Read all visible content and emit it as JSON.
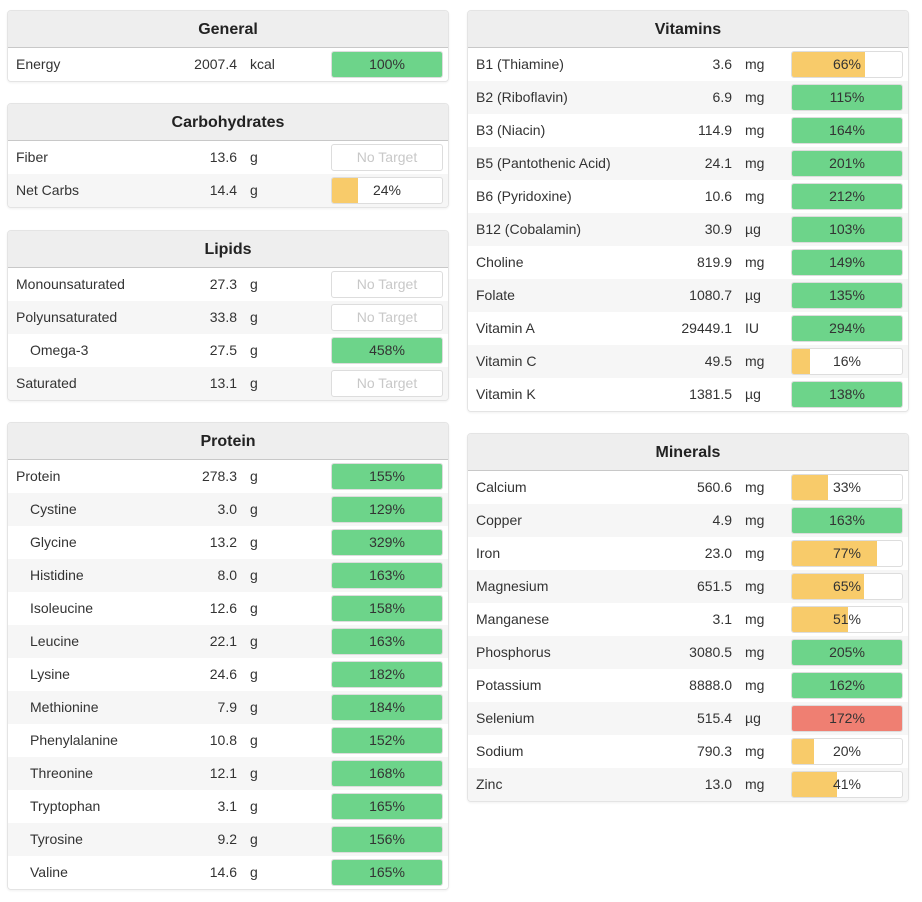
{
  "colors": {
    "good": "#6dd48a",
    "low": "#f8cb6a",
    "high": "#ef7f72"
  },
  "panels": [
    {
      "id": "general",
      "title": "General",
      "col": "left",
      "top": 10,
      "rows": [
        {
          "name": "Energy",
          "value": "2007.4",
          "unit": "kcal",
          "pct": 100,
          "label": "100%",
          "status": "good"
        }
      ]
    },
    {
      "id": "carbohydrates",
      "title": "Carbohydrates",
      "col": "left",
      "top": 103,
      "rows": [
        {
          "name": "Fiber",
          "value": "13.6",
          "unit": "g",
          "pct": null,
          "label": "No Target"
        },
        {
          "name": "Net Carbs",
          "value": "14.4",
          "unit": "g",
          "pct": 24,
          "label": "24%",
          "status": "low"
        }
      ]
    },
    {
      "id": "lipids",
      "title": "Lipids",
      "col": "left",
      "top": 230,
      "rows": [
        {
          "name": "Monounsaturated",
          "value": "27.3",
          "unit": "g",
          "pct": null,
          "label": "No Target"
        },
        {
          "name": "Polyunsaturated",
          "value": "33.8",
          "unit": "g",
          "pct": null,
          "label": "No Target"
        },
        {
          "name": "Omega-3",
          "value": "27.5",
          "unit": "g",
          "pct": 458,
          "label": "458%",
          "status": "good",
          "indent": true
        },
        {
          "name": "Saturated",
          "value": "13.1",
          "unit": "g",
          "pct": null,
          "label": "No Target"
        }
      ]
    },
    {
      "id": "protein",
      "title": "Protein",
      "col": "left",
      "top": 422,
      "rows": [
        {
          "name": "Protein",
          "value": "278.3",
          "unit": "g",
          "pct": 155,
          "label": "155%",
          "status": "good"
        },
        {
          "name": "Cystine",
          "value": "3.0",
          "unit": "g",
          "pct": 129,
          "label": "129%",
          "status": "good",
          "indent": true
        },
        {
          "name": "Glycine",
          "value": "13.2",
          "unit": "g",
          "pct": 329,
          "label": "329%",
          "status": "good",
          "indent": true
        },
        {
          "name": "Histidine",
          "value": "8.0",
          "unit": "g",
          "pct": 163,
          "label": "163%",
          "status": "good",
          "indent": true
        },
        {
          "name": "Isoleucine",
          "value": "12.6",
          "unit": "g",
          "pct": 158,
          "label": "158%",
          "status": "good",
          "indent": true
        },
        {
          "name": "Leucine",
          "value": "22.1",
          "unit": "g",
          "pct": 163,
          "label": "163%",
          "status": "good",
          "indent": true
        },
        {
          "name": "Lysine",
          "value": "24.6",
          "unit": "g",
          "pct": 182,
          "label": "182%",
          "status": "good",
          "indent": true
        },
        {
          "name": "Methionine",
          "value": "7.9",
          "unit": "g",
          "pct": 184,
          "label": "184%",
          "status": "good",
          "indent": true
        },
        {
          "name": "Phenylalanine",
          "value": "10.8",
          "unit": "g",
          "pct": 152,
          "label": "152%",
          "status": "good",
          "indent": true
        },
        {
          "name": "Threonine",
          "value": "12.1",
          "unit": "g",
          "pct": 168,
          "label": "168%",
          "status": "good",
          "indent": true
        },
        {
          "name": "Tryptophan",
          "value": "3.1",
          "unit": "g",
          "pct": 165,
          "label": "165%",
          "status": "good",
          "indent": true
        },
        {
          "name": "Tyrosine",
          "value": "9.2",
          "unit": "g",
          "pct": 156,
          "label": "156%",
          "status": "good",
          "indent": true
        },
        {
          "name": "Valine",
          "value": "14.6",
          "unit": "g",
          "pct": 165,
          "label": "165%",
          "status": "good",
          "indent": true
        }
      ]
    },
    {
      "id": "vitamins",
      "title": "Vitamins",
      "col": "right",
      "top": 10,
      "rows": [
        {
          "name": "B1 (Thiamine)",
          "value": "3.6",
          "unit": "mg",
          "pct": 66,
          "label": "66%",
          "status": "low"
        },
        {
          "name": "B2 (Riboflavin)",
          "value": "6.9",
          "unit": "mg",
          "pct": 115,
          "label": "115%",
          "status": "good"
        },
        {
          "name": "B3 (Niacin)",
          "value": "114.9",
          "unit": "mg",
          "pct": 164,
          "label": "164%",
          "status": "good"
        },
        {
          "name": "B5 (Pantothenic Acid)",
          "value": "24.1",
          "unit": "mg",
          "pct": 201,
          "label": "201%",
          "status": "good"
        },
        {
          "name": "B6 (Pyridoxine)",
          "value": "10.6",
          "unit": "mg",
          "pct": 212,
          "label": "212%",
          "status": "good"
        },
        {
          "name": "B12 (Cobalamin)",
          "value": "30.9",
          "unit": "µg",
          "pct": 103,
          "label": "103%",
          "status": "good"
        },
        {
          "name": "Choline",
          "value": "819.9",
          "unit": "mg",
          "pct": 149,
          "label": "149%",
          "status": "good"
        },
        {
          "name": "Folate",
          "value": "1080.7",
          "unit": "µg",
          "pct": 135,
          "label": "135%",
          "status": "good"
        },
        {
          "name": "Vitamin A",
          "value": "29449.1",
          "unit": "IU",
          "pct": 294,
          "label": "294%",
          "status": "good"
        },
        {
          "name": "Vitamin C",
          "value": "49.5",
          "unit": "mg",
          "pct": 16,
          "label": "16%",
          "status": "low"
        },
        {
          "name": "Vitamin K",
          "value": "1381.5",
          "unit": "µg",
          "pct": 138,
          "label": "138%",
          "status": "good"
        }
      ]
    },
    {
      "id": "minerals",
      "title": "Minerals",
      "col": "right",
      "top": 433,
      "rows": [
        {
          "name": "Calcium",
          "value": "560.6",
          "unit": "mg",
          "pct": 33,
          "label": "33%",
          "status": "low"
        },
        {
          "name": "Copper",
          "value": "4.9",
          "unit": "mg",
          "pct": 163,
          "label": "163%",
          "status": "good"
        },
        {
          "name": "Iron",
          "value": "23.0",
          "unit": "mg",
          "pct": 77,
          "label": "77%",
          "status": "low"
        },
        {
          "name": "Magnesium",
          "value": "651.5",
          "unit": "mg",
          "pct": 65,
          "label": "65%",
          "status": "low"
        },
        {
          "name": "Manganese",
          "value": "3.1",
          "unit": "mg",
          "pct": 51,
          "label": "51%",
          "status": "low"
        },
        {
          "name": "Phosphorus",
          "value": "3080.5",
          "unit": "mg",
          "pct": 205,
          "label": "205%",
          "status": "good"
        },
        {
          "name": "Potassium",
          "value": "8888.0",
          "unit": "mg",
          "pct": 162,
          "label": "162%",
          "status": "good"
        },
        {
          "name": "Selenium",
          "value": "515.4",
          "unit": "µg",
          "pct": 172,
          "label": "172%",
          "status": "high"
        },
        {
          "name": "Sodium",
          "value": "790.3",
          "unit": "mg",
          "pct": 20,
          "label": "20%",
          "status": "low"
        },
        {
          "name": "Zinc",
          "value": "13.0",
          "unit": "mg",
          "pct": 41,
          "label": "41%",
          "status": "low"
        }
      ]
    }
  ]
}
